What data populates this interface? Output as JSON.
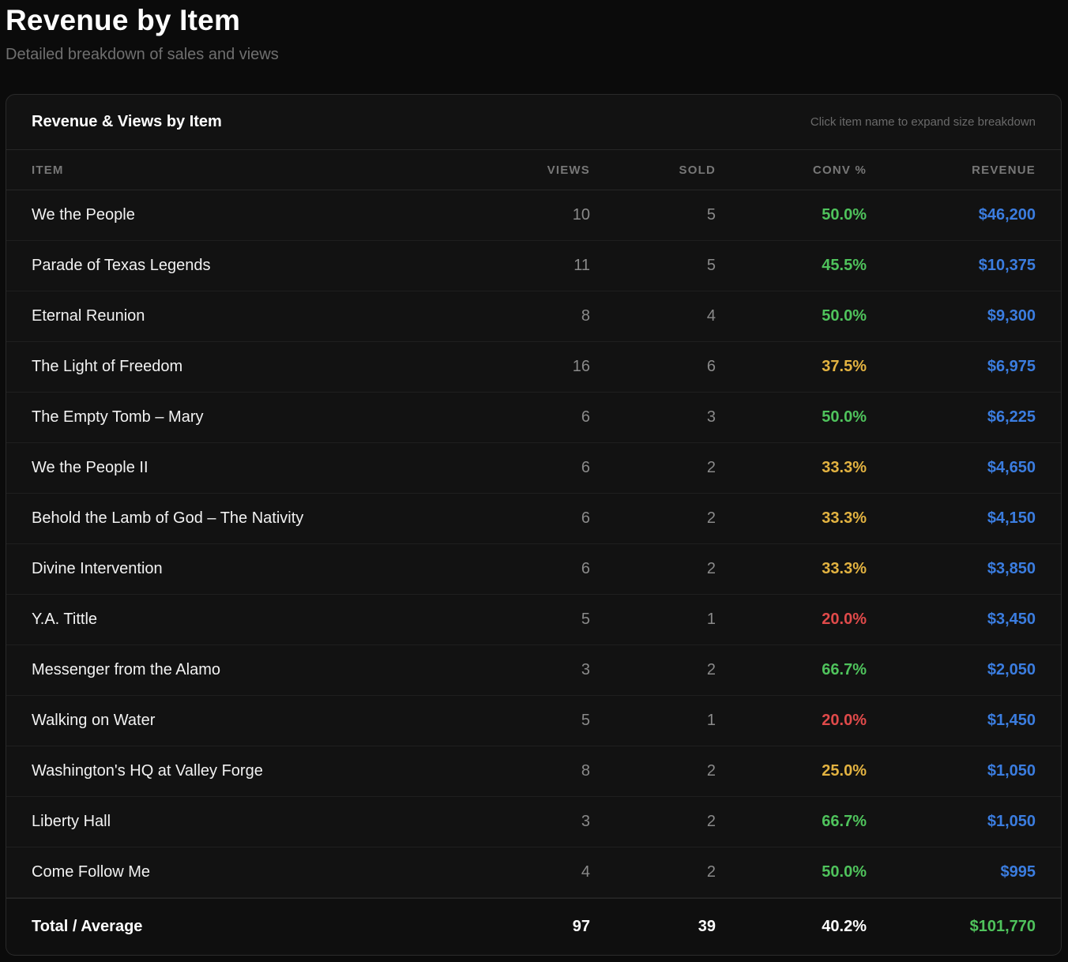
{
  "page": {
    "title": "Revenue by Item",
    "subtitle": "Detailed breakdown of sales and views"
  },
  "card": {
    "title": "Revenue & Views by Item",
    "hint": "Click item name to expand size breakdown"
  },
  "columns": {
    "item": "ITEM",
    "views": "VIEWS",
    "sold": "SOLD",
    "conv": "CONV %",
    "revenue": "REVENUE"
  },
  "rows": [
    {
      "item": "We the People",
      "views": "10",
      "sold": "5",
      "conv": "50.0%",
      "conv_level": "good",
      "revenue": "$46,200"
    },
    {
      "item": "Parade of Texas Legends",
      "views": "11",
      "sold": "5",
      "conv": "45.5%",
      "conv_level": "good",
      "revenue": "$10,375"
    },
    {
      "item": "Eternal Reunion",
      "views": "8",
      "sold": "4",
      "conv": "50.0%",
      "conv_level": "good",
      "revenue": "$9,300"
    },
    {
      "item": "The Light of Freedom",
      "views": "16",
      "sold": "6",
      "conv": "37.5%",
      "conv_level": "mid",
      "revenue": "$6,975"
    },
    {
      "item": "The Empty Tomb – Mary",
      "views": "6",
      "sold": "3",
      "conv": "50.0%",
      "conv_level": "good",
      "revenue": "$6,225"
    },
    {
      "item": "We the People II",
      "views": "6",
      "sold": "2",
      "conv": "33.3%",
      "conv_level": "mid",
      "revenue": "$4,650"
    },
    {
      "item": "Behold the Lamb of God – The Nativity",
      "views": "6",
      "sold": "2",
      "conv": "33.3%",
      "conv_level": "mid",
      "revenue": "$4,150"
    },
    {
      "item": "Divine Intervention",
      "views": "6",
      "sold": "2",
      "conv": "33.3%",
      "conv_level": "mid",
      "revenue": "$3,850"
    },
    {
      "item": "Y.A. Tittle",
      "views": "5",
      "sold": "1",
      "conv": "20.0%",
      "conv_level": "low",
      "revenue": "$3,450"
    },
    {
      "item": "Messenger from the Alamo",
      "views": "3",
      "sold": "2",
      "conv": "66.7%",
      "conv_level": "good",
      "revenue": "$2,050"
    },
    {
      "item": "Walking on Water",
      "views": "5",
      "sold": "1",
      "conv": "20.0%",
      "conv_level": "low",
      "revenue": "$1,450"
    },
    {
      "item": "Washington's HQ at Valley Forge",
      "views": "8",
      "sold": "2",
      "conv": "25.0%",
      "conv_level": "mid",
      "revenue": "$1,050"
    },
    {
      "item": "Liberty Hall",
      "views": "3",
      "sold": "2",
      "conv": "66.7%",
      "conv_level": "good",
      "revenue": "$1,050"
    },
    {
      "item": "Come Follow Me",
      "views": "4",
      "sold": "2",
      "conv": "50.0%",
      "conv_level": "good",
      "revenue": "$995"
    }
  ],
  "total": {
    "label": "Total / Average",
    "views": "97",
    "sold": "39",
    "conv": "40.2%",
    "revenue": "$101,770"
  },
  "colors": {
    "background": "#0b0b0b",
    "card": "#121212",
    "conv_good": "#4fc35c",
    "conv_mid": "#e3b341",
    "conv_low": "#e04a4a",
    "revenue": "#3b7de0",
    "total_revenue": "#4fc35c"
  }
}
